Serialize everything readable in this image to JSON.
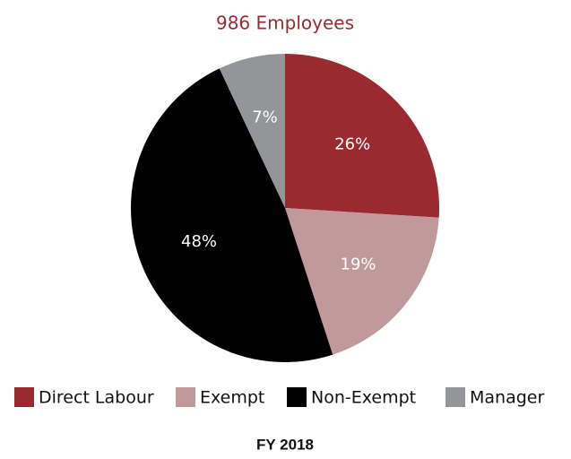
{
  "chart_data": {
    "type": "pie",
    "title": "986 Employees",
    "categories": [
      "Direct Labour",
      "Exempt",
      "Non-Exempt",
      "Manager"
    ],
    "values": [
      26,
      19,
      48,
      7
    ],
    "value_labels": [
      "26%",
      "19%",
      "48%",
      "7%"
    ],
    "colors": [
      "#9b2a30",
      "#c09a9a",
      "#000000",
      "#939598"
    ],
    "caption": "FY 2018"
  }
}
